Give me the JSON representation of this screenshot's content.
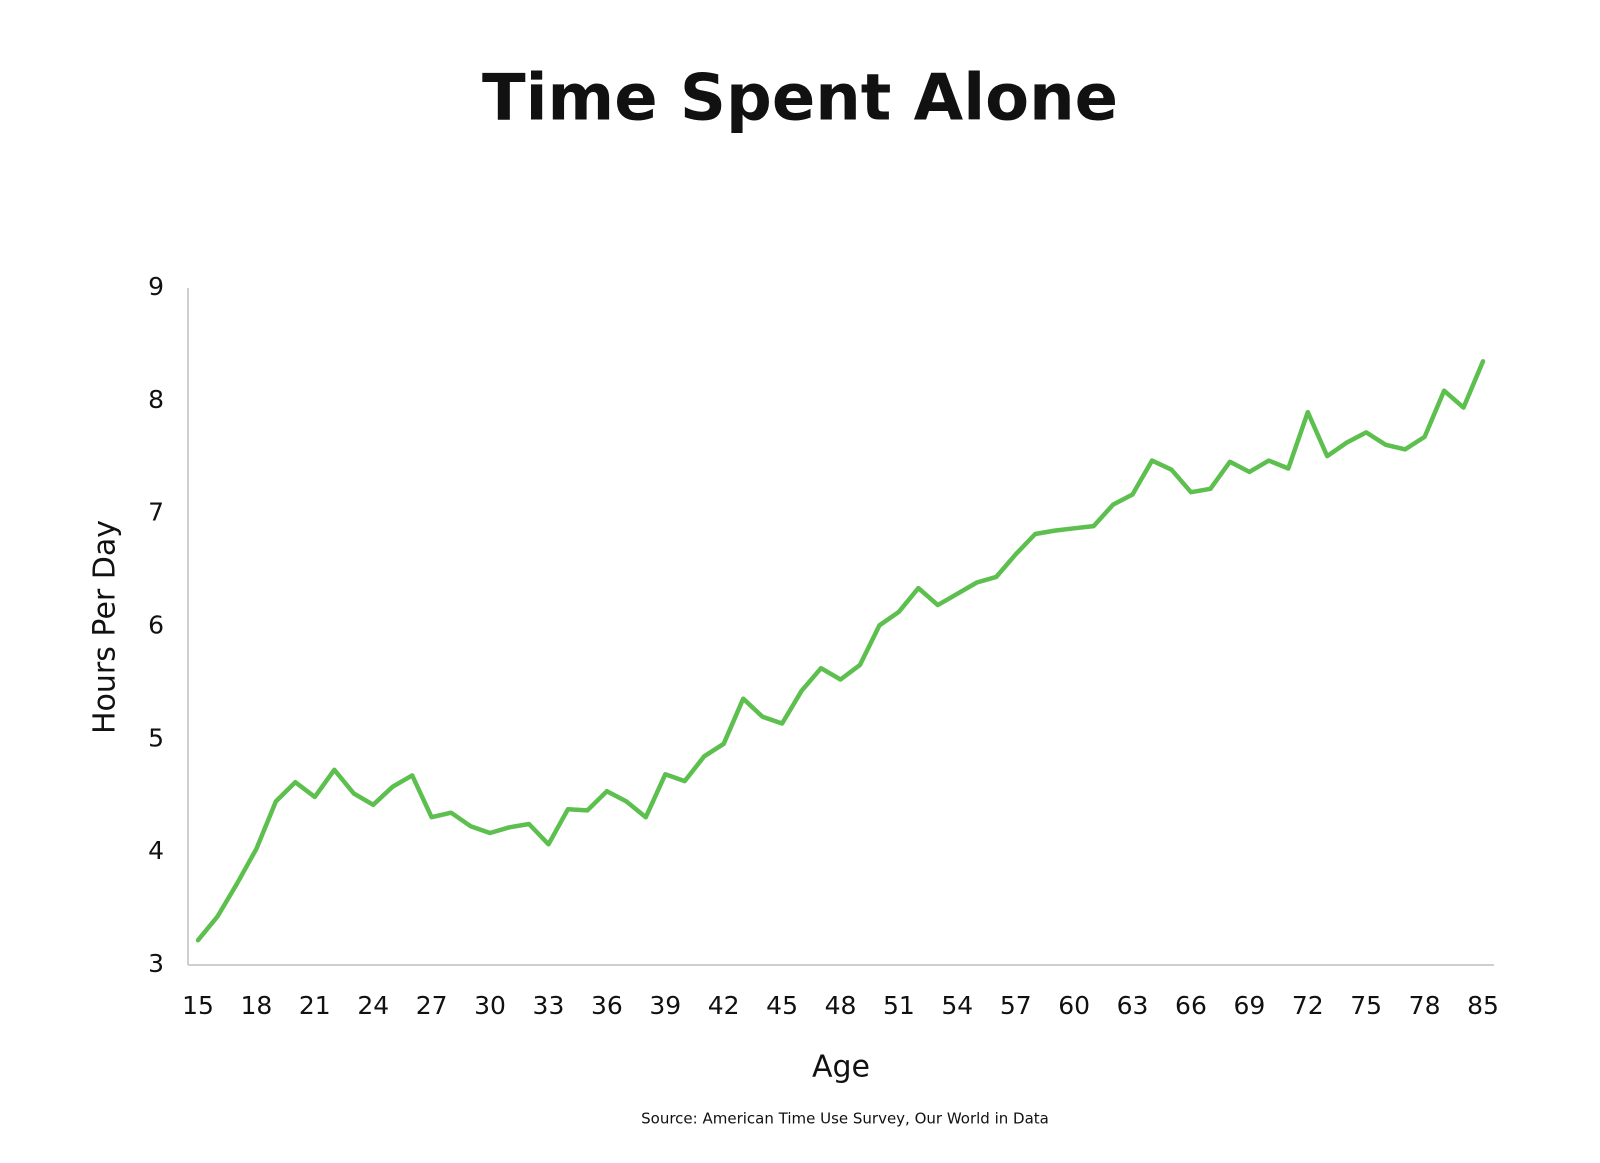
{
  "chart_data": {
    "type": "line",
    "title": "Time Spent Alone",
    "x_label": "Age",
    "y_label": "Hours Per Day",
    "source": "Source: American Time Use Survey, Our World in Data",
    "categories": [
      15,
      null,
      null,
      18,
      null,
      null,
      21,
      null,
      null,
      24,
      null,
      null,
      27,
      null,
      null,
      30,
      null,
      null,
      33,
      null,
      null,
      36,
      null,
      null,
      39,
      null,
      null,
      42,
      null,
      null,
      45,
      null,
      null,
      48,
      null,
      null,
      51,
      null,
      null,
      54,
      null,
      null,
      57,
      null,
      null,
      60,
      null,
      null,
      63,
      null,
      null,
      66,
      null,
      null,
      69,
      null,
      null,
      72,
      null,
      null,
      75,
      null,
      null,
      78,
      null,
      null,
      85
    ],
    "values": [
      3.22,
      3.43,
      3.72,
      4.03,
      4.45,
      4.62,
      4.49,
      4.73,
      4.52,
      4.42,
      4.58,
      4.68,
      4.31,
      4.35,
      4.23,
      4.17,
      4.22,
      4.25,
      4.07,
      4.38,
      4.37,
      4.54,
      4.45,
      4.31,
      4.69,
      4.63,
      4.85,
      4.96,
      5.36,
      5.2,
      5.14,
      5.43,
      5.63,
      5.53,
      5.66,
      6.01,
      6.13,
      6.34,
      6.19,
      6.29,
      6.39,
      6.44,
      6.64,
      6.82,
      6.85,
      6.87,
      6.89,
      7.08,
      7.17,
      7.47,
      7.39,
      7.19,
      7.22,
      7.46,
      7.37,
      7.47,
      7.4,
      7.9,
      7.51,
      7.63,
      7.72,
      7.61,
      7.57,
      7.68,
      8.09,
      7.94,
      8.35
    ],
    "color": "#5cbf4e",
    "ylim": [
      3,
      9
    ],
    "yticks": [
      3,
      4,
      5,
      6,
      7,
      8,
      9
    ],
    "grid": false
  }
}
